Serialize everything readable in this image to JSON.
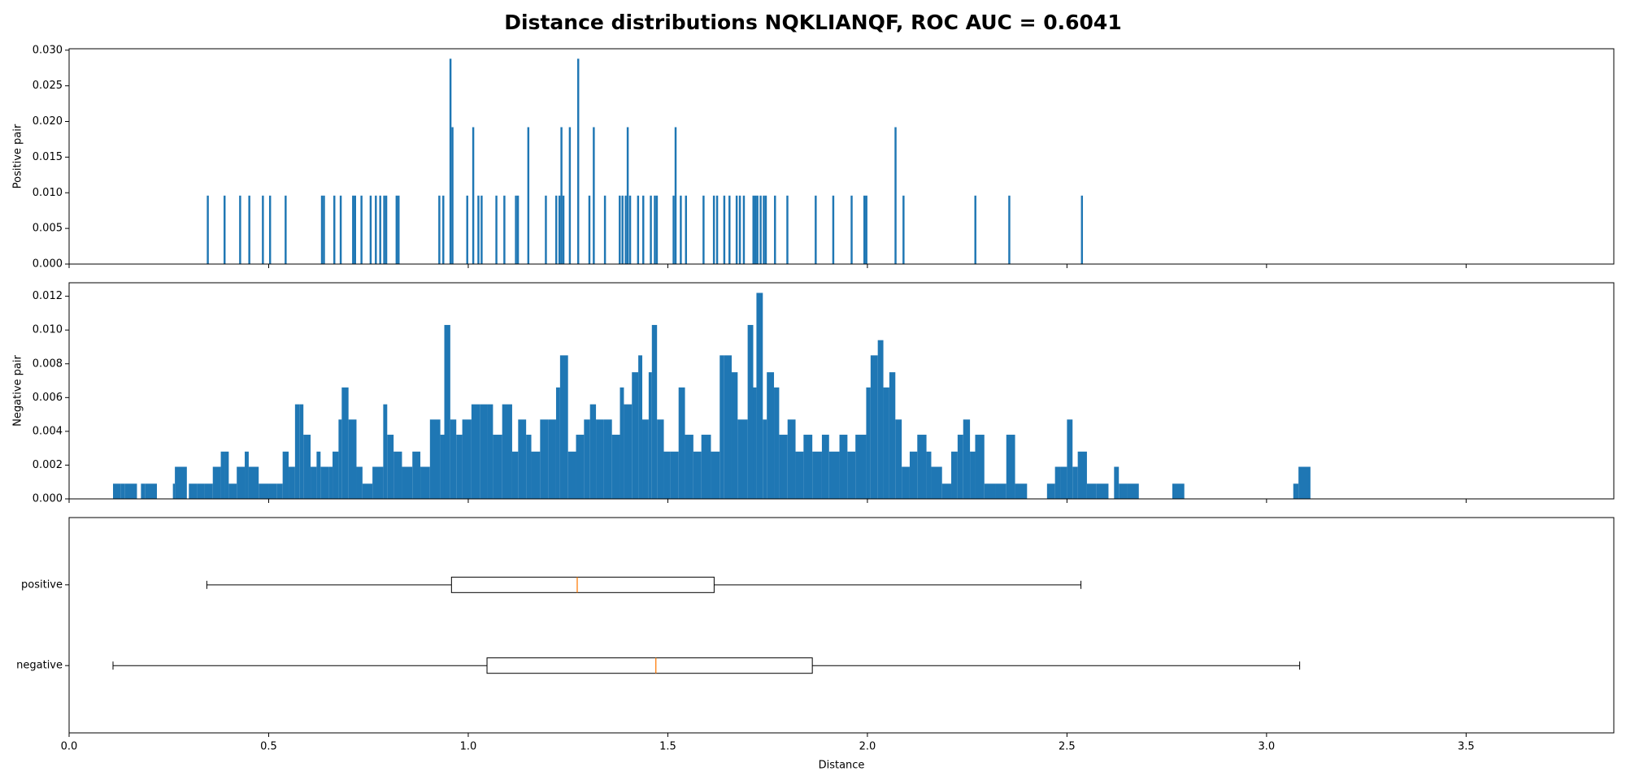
{
  "title": "Distance distributions NQKLIANQF, ROC AUC = 0.6041",
  "chart_data": [
    {
      "type": "bar",
      "ylabel": "Positive pair",
      "color": "#1f77b4",
      "x": [
        0.345,
        0.387,
        0.426,
        0.449,
        0.483,
        0.501,
        0.54,
        0.631,
        0.636,
        0.662,
        0.678,
        0.709,
        0.714,
        0.73,
        0.753,
        0.766,
        0.777,
        0.787,
        0.792,
        0.818,
        0.823,
        0.925,
        0.935,
        0.953,
        0.958,
        0.995,
        1.01,
        1.023,
        1.031,
        1.068,
        1.088,
        1.117,
        1.122,
        1.148,
        1.192,
        1.218,
        1.226,
        1.231,
        1.236,
        1.252,
        1.273,
        1.301,
        1.312,
        1.34,
        1.377,
        1.384,
        1.392,
        1.397,
        1.403,
        1.423,
        1.436,
        1.455,
        1.465,
        1.47,
        1.512,
        1.517,
        1.53,
        1.543,
        1.587,
        1.613,
        1.621,
        1.639,
        1.652,
        1.67,
        1.678,
        1.688,
        1.712,
        1.717,
        1.722,
        1.73,
        1.738,
        1.743,
        1.766,
        1.797,
        1.868,
        1.912,
        1.958,
        1.99,
        1.995,
        2.068,
        2.088,
        2.268,
        2.353,
        2.535
      ],
      "values": [
        0.0096,
        0.0096,
        0.0096,
        0.0096,
        0.0096,
        0.0096,
        0.0096,
        0.0096,
        0.0096,
        0.0096,
        0.0096,
        0.0096,
        0.0096,
        0.0096,
        0.0096,
        0.0096,
        0.0096,
        0.0096,
        0.0096,
        0.0096,
        0.0096,
        0.0096,
        0.0096,
        0.0288,
        0.0192,
        0.0096,
        0.0192,
        0.0096,
        0.0096,
        0.0096,
        0.0096,
        0.0096,
        0.0096,
        0.0192,
        0.0096,
        0.0096,
        0.0096,
        0.0192,
        0.0096,
        0.0192,
        0.0288,
        0.0096,
        0.0192,
        0.0096,
        0.0096,
        0.0096,
        0.0096,
        0.0192,
        0.0096,
        0.0096,
        0.0096,
        0.0096,
        0.0096,
        0.0096,
        0.0096,
        0.0192,
        0.0096,
        0.0096,
        0.0096,
        0.0096,
        0.0096,
        0.0096,
        0.0096,
        0.0096,
        0.0096,
        0.0096,
        0.0096,
        0.0096,
        0.0096,
        0.0096,
        0.0096,
        0.0096,
        0.0096,
        0.0096,
        0.0096,
        0.0096,
        0.0096,
        0.0096,
        0.0096,
        0.0192,
        0.0096,
        0.0096,
        0.0096,
        0.0096
      ],
      "xlim": [
        0,
        3.87
      ],
      "xticks": [
        0,
        0.5,
        1,
        1.5,
        2,
        2.5,
        3,
        3.5
      ],
      "ylim": [
        0,
        0.0302
      ],
      "yticks": [
        {
          "value": 0,
          "label": "0.000"
        },
        0.005,
        {
          "value": 0.01,
          "label": "0.010"
        },
        0.015,
        {
          "value": 0.02,
          "label": "0.020"
        },
        0.025,
        {
          "value": 0.03,
          "label": "0.030"
        }
      ]
    },
    {
      "type": "bar",
      "ylabel": "Negative pair",
      "color": "#1f77b4",
      "x": [
        0.11,
        0.13,
        0.14,
        0.18,
        0.19,
        0.26,
        0.265,
        0.3,
        0.32,
        0.34,
        0.36,
        0.38,
        0.39,
        0.4,
        0.42,
        0.44,
        0.45,
        0.475,
        0.5,
        0.52,
        0.535,
        0.55,
        0.566,
        0.577,
        0.587,
        0.605,
        0.62,
        0.63,
        0.65,
        0.66,
        0.675,
        0.683,
        0.7,
        0.72,
        0.735,
        0.76,
        0.787,
        0.797,
        0.813,
        0.834,
        0.86,
        0.88,
        0.904,
        0.93,
        0.94,
        0.955,
        0.97,
        0.985,
        1.008,
        1.03,
        1.047,
        1.062,
        1.085,
        1.11,
        1.125,
        1.145,
        1.158,
        1.18,
        1.2,
        1.22,
        1.23,
        1.25,
        1.27,
        1.29,
        1.305,
        1.32,
        1.34,
        1.36,
        1.38,
        1.39,
        1.41,
        1.426,
        1.436,
        1.452,
        1.46,
        1.473,
        1.49,
        1.506,
        1.527,
        1.543,
        1.564,
        1.584,
        1.608,
        1.63,
        1.64,
        1.66,
        1.675,
        1.7,
        1.714,
        1.722,
        1.738,
        1.748,
        1.766,
        1.779,
        1.8,
        1.82,
        1.84,
        1.862,
        1.886,
        1.904,
        1.93,
        1.95,
        1.97,
        1.997,
        2.008,
        2.026,
        2.04,
        2.055,
        2.07,
        2.086,
        2.106,
        2.125,
        2.148,
        2.16,
        2.187,
        2.21,
        2.226,
        2.24,
        2.257,
        2.27,
        2.293,
        2.32,
        2.348,
        2.37,
        2.45,
        2.47,
        2.483,
        2.5,
        2.514,
        2.527,
        2.55,
        2.574,
        2.618,
        2.63,
        2.65,
        2.764,
        3.067,
        3.08
      ],
      "values": [
        0.0009,
        0.0009,
        0.0009,
        0.0009,
        0.0009,
        0.0009,
        0.0019,
        0.0009,
        0.0009,
        0.0009,
        0.0019,
        0.0028,
        0.0028,
        0.0009,
        0.0019,
        0.0028,
        0.0019,
        0.0009,
        0.0009,
        0.0009,
        0.0028,
        0.0019,
        0.0056,
        0.0056,
        0.0038,
        0.0019,
        0.0028,
        0.0019,
        0.0019,
        0.0028,
        0.0047,
        0.0066,
        0.0047,
        0.0019,
        0.0009,
        0.0019,
        0.0056,
        0.0038,
        0.0028,
        0.0019,
        0.0028,
        0.0019,
        0.0047,
        0.0038,
        0.0103,
        0.0047,
        0.0038,
        0.0047,
        0.0056,
        0.0056,
        0.0056,
        0.0038,
        0.0056,
        0.0028,
        0.0047,
        0.0038,
        0.0028,
        0.0047,
        0.0047,
        0.0066,
        0.0085,
        0.0028,
        0.0038,
        0.0047,
        0.0056,
        0.0047,
        0.0047,
        0.0038,
        0.0066,
        0.0056,
        0.0075,
        0.0085,
        0.0047,
        0.0075,
        0.0103,
        0.0047,
        0.0028,
        0.0028,
        0.0066,
        0.0038,
        0.0028,
        0.0038,
        0.0028,
        0.0085,
        0.0085,
        0.0075,
        0.0047,
        0.0103,
        0.0066,
        0.0122,
        0.0047,
        0.0075,
        0.0066,
        0.0038,
        0.0047,
        0.0028,
        0.0038,
        0.0028,
        0.0038,
        0.0028,
        0.0038,
        0.0028,
        0.0038,
        0.0066,
        0.0085,
        0.0094,
        0.0066,
        0.0075,
        0.0047,
        0.0019,
        0.0028,
        0.0038,
        0.0028,
        0.0019,
        0.0009,
        0.0028,
        0.0038,
        0.0047,
        0.0028,
        0.0038,
        0.0009,
        0.0009,
        0.0038,
        0.0009,
        0.0009,
        0.0019,
        0.0019,
        0.0047,
        0.0019,
        0.0028,
        0.0009,
        0.0009,
        0.0019,
        0.0009,
        0.0009,
        0.0009,
        0.0009,
        0.0019
      ],
      "xlim": [
        0,
        3.87
      ],
      "xticks": [
        0,
        0.5,
        1,
        1.5,
        2,
        2.5,
        3,
        3.5
      ],
      "ylim": [
        0,
        0.0128
      ],
      "yticks": [
        {
          "value": 0,
          "label": "0.000"
        },
        {
          "value": 0.002,
          "label": "0.002"
        },
        {
          "value": 0.004,
          "label": "0.004"
        },
        {
          "value": 0.006,
          "label": "0.006"
        },
        {
          "value": 0.008,
          "label": "0.008"
        },
        {
          "value": 0.01,
          "label": "0.010"
        },
        {
          "value": 0.012,
          "label": "0.012"
        }
      ]
    },
    {
      "type": "box",
      "xlabel": "Distance",
      "color": "#000000",
      "median_color": "#ff7f0e",
      "categories": [
        "positive",
        "negative"
      ],
      "boxes": [
        {
          "whislo": 0.345,
          "q1": 0.958,
          "med": 1.273,
          "q3": 1.616,
          "whishi": 2.535
        },
        {
          "whislo": 0.11,
          "q1": 1.047,
          "med": 1.47,
          "q3": 1.862,
          "whishi": 3.083
        }
      ],
      "xlim": [
        0,
        3.87
      ],
      "xticks": [
        {
          "value": 0,
          "label": "0.0"
        },
        0.5,
        {
          "value": 1,
          "label": "1.0"
        },
        1.5,
        {
          "value": 2,
          "label": "2.0"
        },
        2.5,
        {
          "value": 3,
          "label": "3.0"
        },
        3.5
      ]
    }
  ]
}
